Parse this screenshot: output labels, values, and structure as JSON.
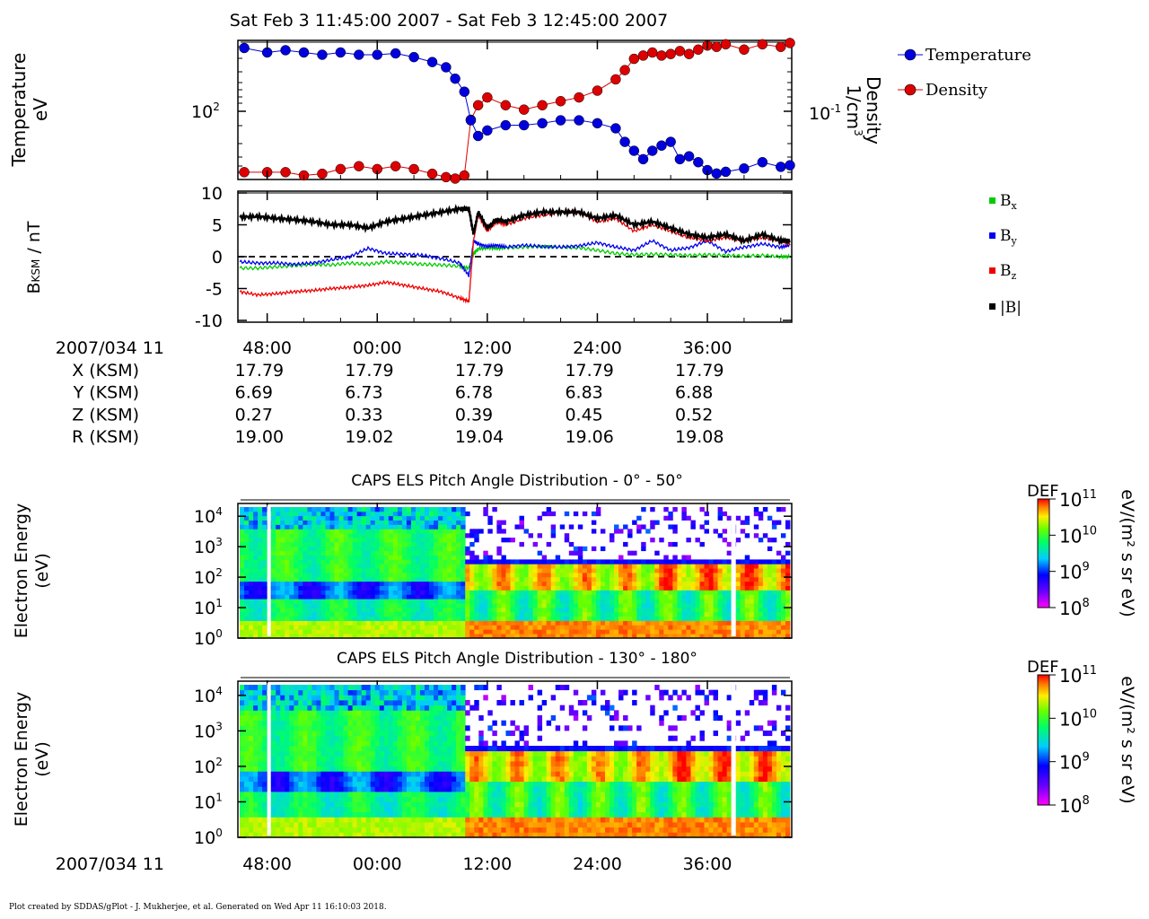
{
  "title": "Sat Feb 3 11:45:00 2007 - Sat Feb 3 12:45:00 2007",
  "footer": "Plot created by SDDAS/gPlot - J. Mukherjee, et al.  Generated on Wed Apr 11 16:10:03 2018.",
  "colors": {
    "temperature": "#0000dd",
    "density": "#dd0000",
    "bx": "#00cc00",
    "by": "#0000ee",
    "bz": "#ee0000",
    "bmag": "#000000"
  },
  "time_axis": {
    "ticks": [
      "48:00",
      "00:00",
      "12:00",
      "24:00",
      "36:00"
    ],
    "tick_minutes": [
      48,
      60,
      72,
      84,
      96
    ],
    "range_minutes": [
      45,
      105
    ],
    "label": "2007/034 11"
  },
  "panel1": {
    "ylabel": "Temperature",
    "yunit": "eV",
    "ytick": "10",
    "ytick_exp": "2",
    "y2label": "Density",
    "y2unit": "1/cm",
    "y2unit_exp": "3",
    "y2tick": "10",
    "y2tick_exp": "-1",
    "legend": [
      "Temperature",
      "Density"
    ]
  },
  "panel2": {
    "ylabel": "B",
    "ylabel_sub": "KSM",
    "yunit": " / nT",
    "yticks": [
      "10",
      "5",
      "0",
      "-5",
      "-10"
    ],
    "legend": [
      {
        "label": "B",
        "sub": "x"
      },
      {
        "label": "B",
        "sub": "y"
      },
      {
        "label": "B",
        "sub": "z"
      },
      {
        "label": "|B|",
        "sub": ""
      }
    ]
  },
  "ephemeris": {
    "rows": [
      {
        "label": "X (KSM)",
        "values": [
          "17.79",
          "17.79",
          "17.79",
          "17.79",
          "17.79"
        ]
      },
      {
        "label": "Y (KSM)",
        "values": [
          "6.69",
          "6.73",
          "6.78",
          "6.83",
          "6.88"
        ]
      },
      {
        "label": "Z (KSM)",
        "values": [
          "0.27",
          "0.33",
          "0.39",
          "0.45",
          "0.52"
        ]
      },
      {
        "label": "R (KSM)",
        "values": [
          "19.00",
          "19.02",
          "19.04",
          "19.06",
          "19.08"
        ]
      }
    ]
  },
  "spectrograms": [
    {
      "title": "CAPS ELS Pitch Angle Distribution - 0° - 50°",
      "ylabel1": "Electron Energy",
      "ylabel2": "(eV)"
    },
    {
      "title": "CAPS ELS Pitch Angle Distribution - 130° - 180°",
      "ylabel1": "Electron Energy",
      "ylabel2": "(eV)"
    }
  ],
  "energy_ticks": [
    {
      "base": "10",
      "exp": "4"
    },
    {
      "base": "10",
      "exp": "3"
    },
    {
      "base": "10",
      "exp": "2"
    },
    {
      "base": "10",
      "exp": "1"
    },
    {
      "base": "10",
      "exp": "0"
    }
  ],
  "colorbar": {
    "label": "DEF",
    "unit": "eV/(m² s sr eV)",
    "ticks": [
      {
        "base": "10",
        "exp": "11"
      },
      {
        "base": "10",
        "exp": "10"
      },
      {
        "base": "10",
        "exp": "9"
      },
      {
        "base": "10",
        "exp": "8"
      }
    ]
  },
  "chart_data": [
    {
      "type": "scatter",
      "title": "Sat Feb 3 11:45:00 2007 - Sat Feb 3 12:45:00 2007",
      "x_unit": "minutes after 11:00 (2007/034)",
      "xlim": [
        45,
        105
      ],
      "series": [
        {
          "name": "Temperature",
          "axis": "left",
          "unit": "eV",
          "log": true,
          "x": [
            45.5,
            48,
            50,
            52,
            54,
            56,
            58,
            60,
            62,
            64,
            66,
            67.5,
            68.5,
            69.5,
            70.2,
            71,
            72,
            74,
            76,
            78,
            80,
            82,
            84,
            86,
            87,
            88,
            89,
            90,
            91,
            92,
            93,
            94,
            95,
            96,
            97,
            98,
            100,
            102,
            104,
            105
          ],
          "y": [
            210,
            200,
            205,
            200,
            195,
            200,
            195,
            195,
            198,
            190,
            180,
            170,
            150,
            130,
            95,
            80,
            85,
            90,
            90,
            92,
            95,
            95,
            92,
            87,
            75,
            68,
            62,
            68,
            72,
            75,
            62,
            64,
            60,
            55,
            53,
            54,
            56,
            60,
            57,
            58
          ]
        },
        {
          "name": "Density",
          "axis": "right",
          "unit": "1/cm3",
          "log": true,
          "x": [
            45.5,
            48,
            50,
            52,
            54,
            56,
            58,
            60,
            62,
            64,
            66,
            67.5,
            68.5,
            69.5,
            70.2,
            71,
            72,
            74,
            76,
            78,
            80,
            82,
            84,
            86,
            87,
            88,
            89,
            90,
            91,
            92,
            93,
            94,
            95,
            96,
            97,
            98,
            100,
            102,
            104,
            105
          ],
          "y": [
            0.032,
            0.032,
            0.032,
            0.03,
            0.031,
            0.034,
            0.036,
            0.034,
            0.036,
            0.034,
            0.031,
            0.029,
            0.027,
            0.03,
            0.09,
            0.12,
            0.14,
            0.12,
            0.11,
            0.12,
            0.13,
            0.14,
            0.16,
            0.2,
            0.24,
            0.3,
            0.32,
            0.34,
            0.32,
            0.33,
            0.35,
            0.33,
            0.36,
            0.39,
            0.38,
            0.4,
            0.36,
            0.4,
            0.38,
            0.41
          ]
        }
      ]
    },
    {
      "type": "line",
      "ylabel": "B_KSM / nT",
      "ylim": [
        -10,
        10
      ],
      "x_unit": "minutes after 11:00 (2007/034)",
      "x": [
        45,
        47,
        49,
        51,
        53,
        55,
        57,
        59,
        61,
        63,
        65,
        67,
        69,
        70,
        70.5,
        71,
        72,
        73,
        74,
        76,
        78,
        80,
        82,
        84,
        86,
        88,
        90,
        92,
        94,
        96,
        98,
        100,
        102,
        104,
        105
      ],
      "series": [
        {
          "name": "Bx",
          "values": [
            -1.8,
            -1.8,
            -1.6,
            -1.4,
            -1.2,
            -1.3,
            -1.0,
            -1.2,
            -0.8,
            -1.0,
            -1.2,
            -1.3,
            -1.5,
            -1.8,
            0.5,
            1.2,
            1.4,
            1.3,
            1.4,
            1.5,
            1.6,
            1.5,
            1.4,
            1.0,
            0.5,
            0.3,
            0.4,
            0.3,
            0.2,
            0.3,
            0.2,
            0.1,
            0.2,
            0.0,
            0.0
          ]
        },
        {
          "name": "By",
          "values": [
            -0.8,
            -1.0,
            -1.0,
            -1.2,
            -1.0,
            -0.5,
            0.0,
            1.3,
            0.5,
            0.4,
            0.2,
            -0.3,
            -1.0,
            -3.0,
            2.5,
            2.0,
            1.6,
            1.8,
            1.5,
            1.8,
            1.6,
            1.5,
            1.7,
            2.2,
            1.5,
            1.0,
            2.5,
            1.0,
            1.4,
            2.5,
            0.8,
            1.5,
            2.0,
            1.5,
            1.8
          ]
        },
        {
          "name": "Bz",
          "values": [
            -5.5,
            -6.0,
            -5.8,
            -5.5,
            -5.3,
            -5.0,
            -4.8,
            -4.5,
            -4.0,
            -4.5,
            -5.0,
            -5.5,
            -6.5,
            -7.0,
            2.5,
            6.5,
            4.0,
            5.5,
            5.0,
            6.0,
            6.5,
            7.0,
            7.0,
            5.5,
            6.0,
            4.0,
            5.0,
            4.0,
            3.0,
            2.5,
            3.0,
            2.5,
            3.0,
            2.5,
            2.0
          ]
        },
        {
          "name": "|B|",
          "values": [
            6.2,
            6.3,
            6.0,
            5.8,
            5.5,
            5.0,
            5.0,
            4.5,
            5.5,
            6.0,
            6.5,
            7.0,
            7.5,
            7.5,
            3.5,
            7.0,
            4.5,
            5.8,
            5.5,
            6.5,
            7.0,
            7.0,
            7.0,
            6.0,
            6.5,
            5.0,
            5.5,
            4.5,
            3.5,
            3.0,
            3.5,
            2.5,
            3.5,
            2.5,
            2.5
          ]
        }
      ]
    },
    {
      "type": "heatmap",
      "title": "CAPS ELS Pitch Angle Distribution - 0° - 50°",
      "ylabel": "Electron Energy (eV)",
      "ylim_log10": [
        0,
        4.3
      ],
      "colorbar": "DEF eV/(m² s sr eV)",
      "clim_log10": [
        8,
        11
      ]
    },
    {
      "type": "heatmap",
      "title": "CAPS ELS Pitch Angle Distribution - 130° - 180°",
      "ylabel": "Electron Energy (eV)",
      "ylim_log10": [
        0,
        4.3
      ],
      "colorbar": "DEF eV/(m² s sr eV)",
      "clim_log10": [
        8,
        11
      ]
    }
  ]
}
